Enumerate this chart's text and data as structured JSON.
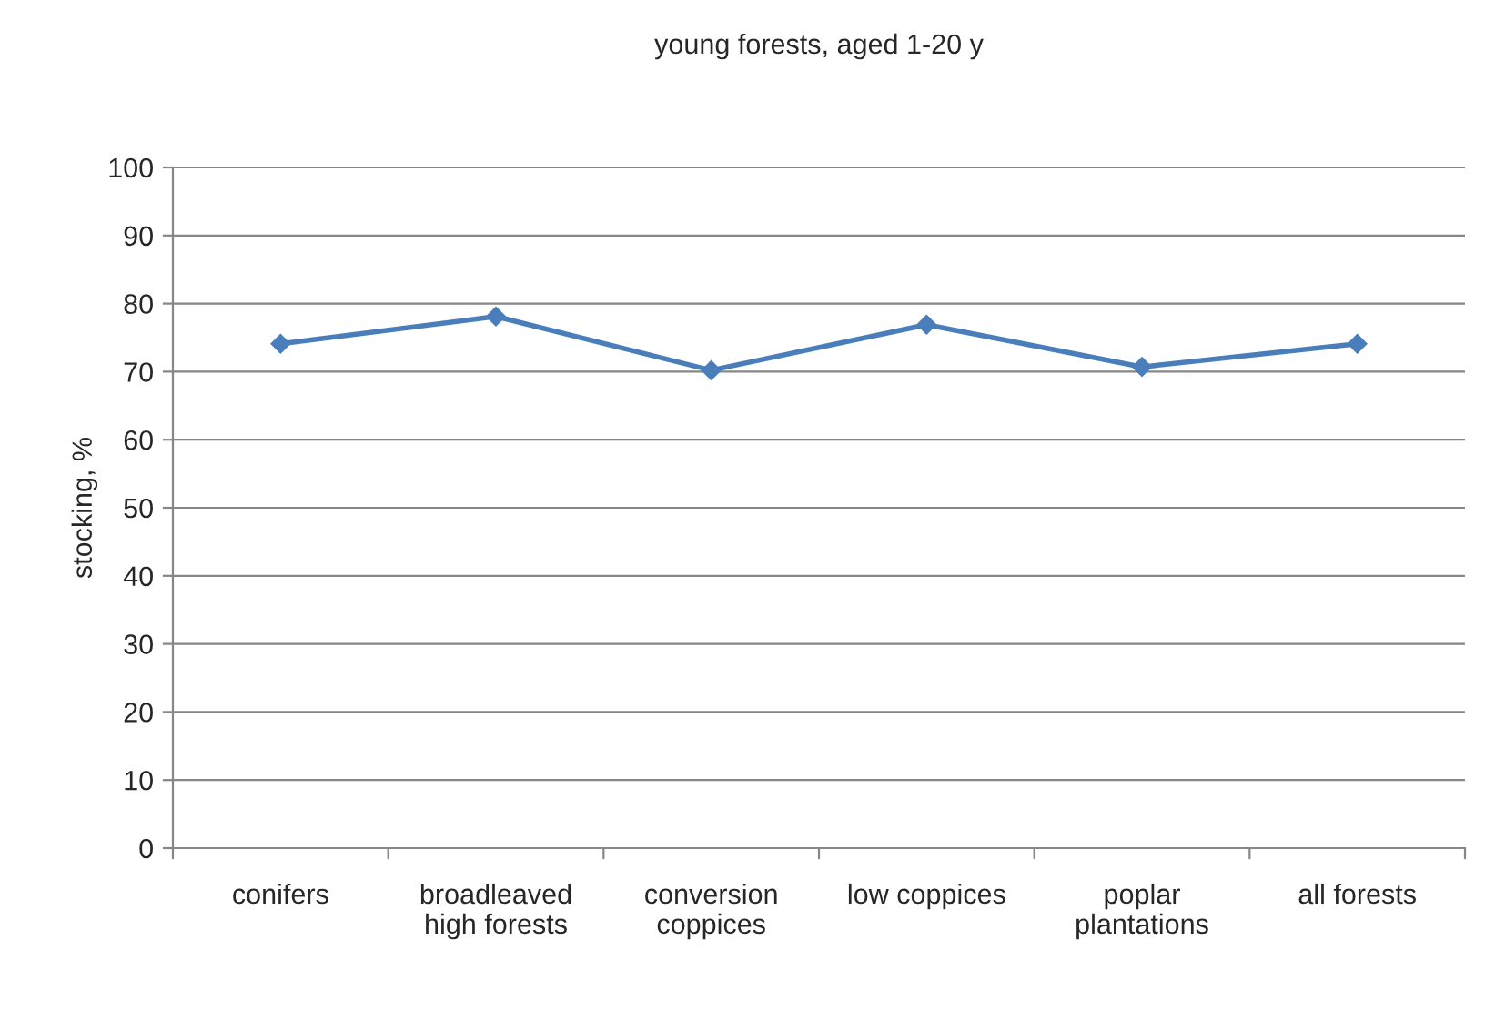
{
  "chart_data": {
    "type": "line",
    "title": "young forests, aged 1-20 y",
    "ylabel": "stocking, %",
    "categories": [
      "conifers",
      "broadleaved\nhigh forests",
      "conversion\ncoppices",
      "low coppices",
      "poplar\nplantations",
      "all forests"
    ],
    "series": [
      {
        "color": "#4a7ebb",
        "values": [
          74.1,
          78.1,
          70.2,
          76.9,
          70.7,
          74.1
        ]
      }
    ],
    "ylim": [
      0,
      100
    ],
    "yticks": [
      0,
      10,
      20,
      30,
      40,
      50,
      60,
      70,
      80,
      90,
      100
    ],
    "grid": "y",
    "marker": "diamond",
    "line_style": "solid",
    "legend": false
  }
}
